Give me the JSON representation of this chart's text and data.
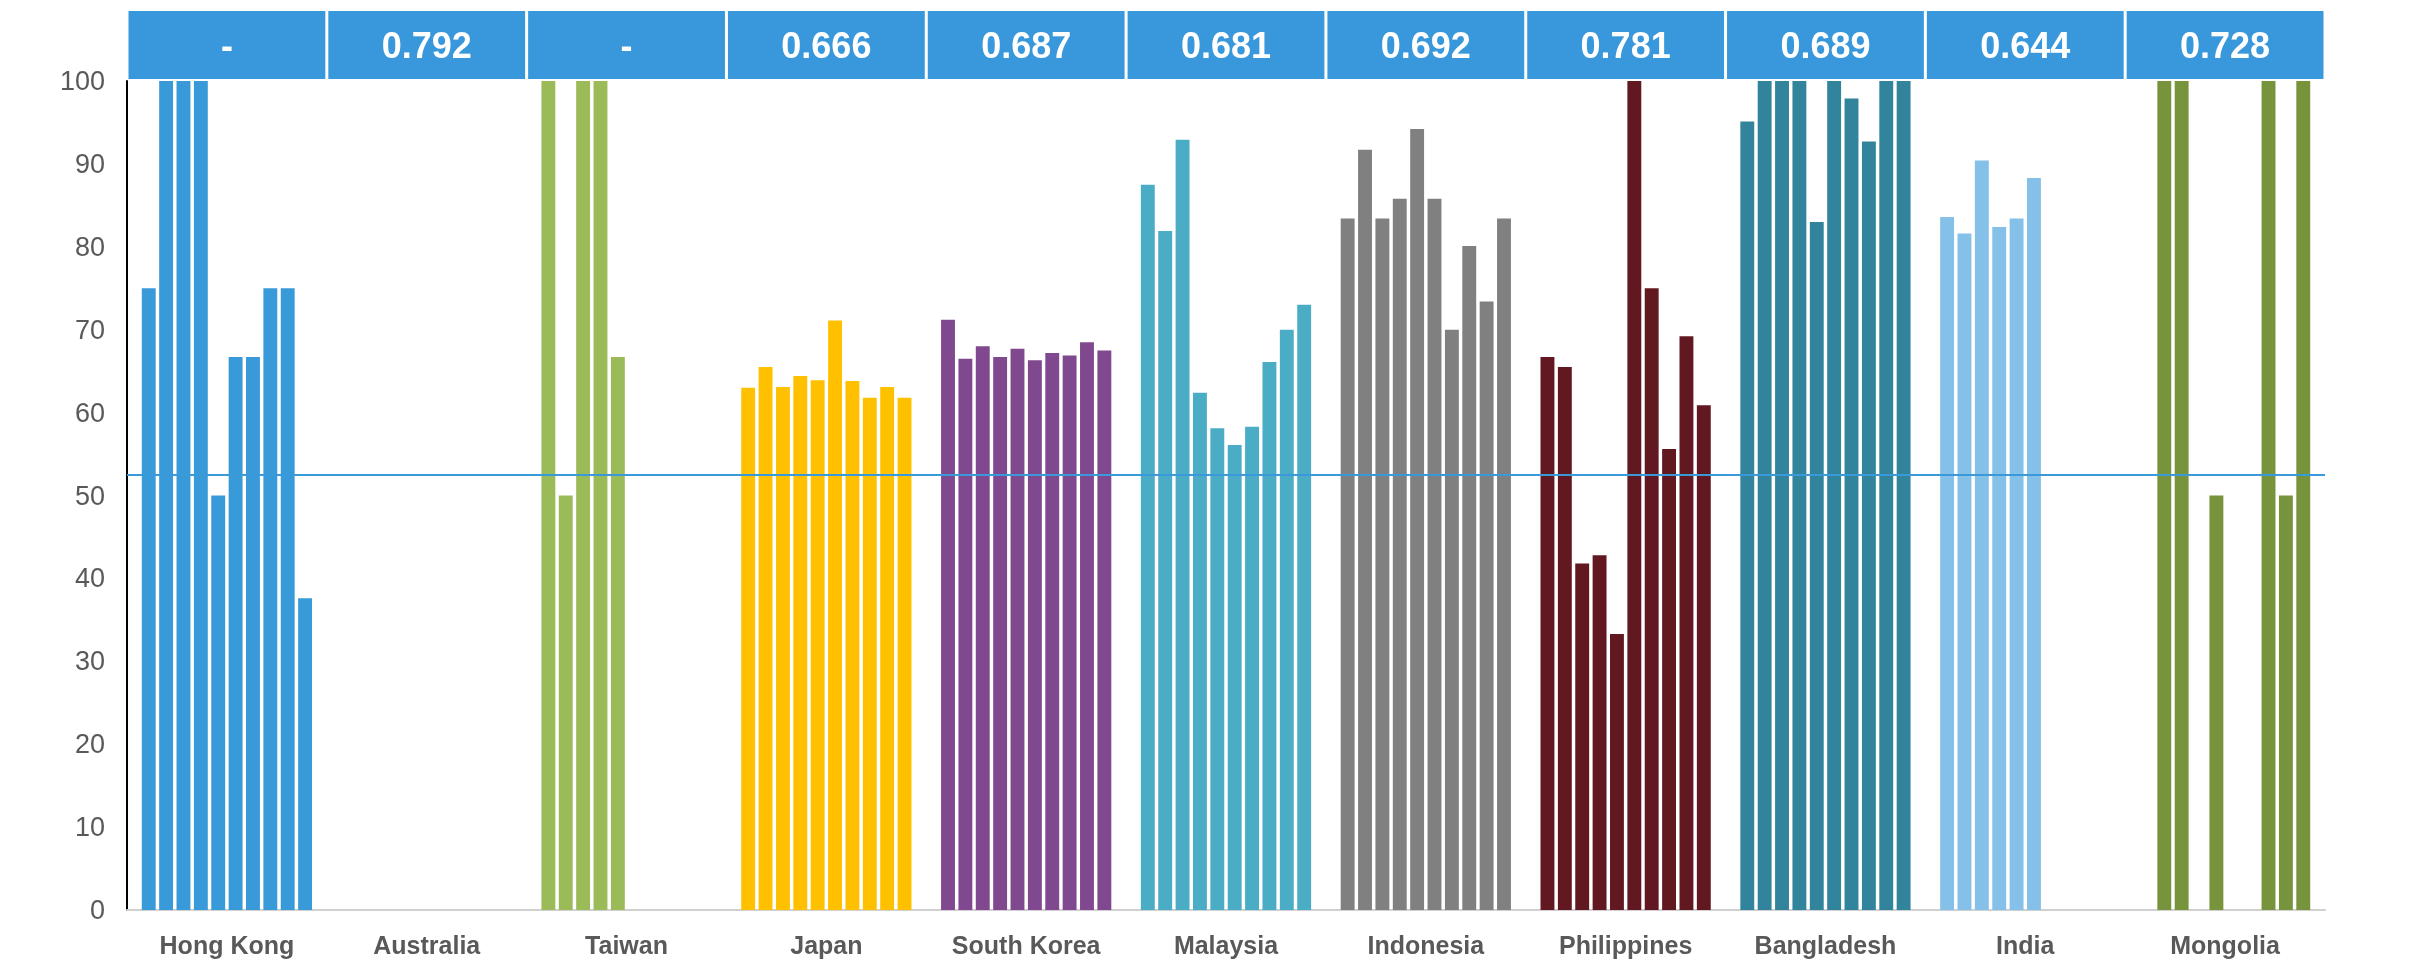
{
  "chart_data": {
    "type": "bar",
    "categories": [
      "Hong Kong",
      "Australia",
      "Taiwan",
      "Japan",
      "South Korea",
      "Malaysia",
      "Indonesia",
      "Philippines",
      "Bangladesh",
      "India",
      "Mongolia"
    ],
    "series": [
      {
        "colors": [
          "#389ad8",
          null,
          "#9bbb59",
          "#ffc000",
          "#80488f",
          "#4bacc6",
          "#808080",
          "#611821",
          "#31849b",
          "#84c0e8",
          "#77933c"
        ],
        "values": [
          75,
          null,
          100,
          63.0,
          71.2,
          87.5,
          83.4,
          66.7,
          95.1,
          83.6,
          null
        ]
      },
      {
        "colors": [
          "#389ad8",
          null,
          "#9bbb59",
          "#ffc000",
          "#80488f",
          "#4bacc6",
          "#808080",
          "#611821",
          "#31849b",
          "#84c0e8",
          "#77933c"
        ],
        "values": [
          100,
          null,
          50,
          65.5,
          66.5,
          81.9,
          91.7,
          65.5,
          100,
          81.6,
          100
        ]
      },
      {
        "colors": [
          "#389ad8",
          null,
          "#9bbb59",
          "#ffc000",
          "#80488f",
          "#4bacc6",
          "#808080",
          "#611821",
          "#31849b",
          "#84c0e8",
          "#77933c"
        ],
        "values": [
          100,
          null,
          100,
          63.1,
          68.0,
          92.9,
          83.4,
          41.8,
          100,
          90.4,
          100
        ]
      },
      {
        "colors": [
          "#389ad8",
          null,
          "#9bbb59",
          "#ffc000",
          "#80488f",
          "#4bacc6",
          "#808080",
          "#611821",
          "#31849b",
          "#84c0e8",
          "#77933c"
        ],
        "values": [
          100,
          null,
          100,
          64.4,
          66.7,
          62.4,
          85.8,
          42.8,
          100,
          82.4,
          null
        ]
      },
      {
        "colors": [
          "#389ad8",
          null,
          "#9bbb59",
          "#ffc000",
          "#80488f",
          "#4bacc6",
          "#808080",
          "#611821",
          "#31849b",
          "#84c0e8",
          "#77933c"
        ],
        "values": [
          50,
          null,
          66.7,
          63.9,
          67.7,
          58.1,
          94.2,
          33.3,
          83.0,
          83.4,
          50
        ]
      },
      {
        "colors": [
          "#389ad8",
          null,
          "#9bbb59",
          "#ffc000",
          "#80488f",
          "#4bacc6",
          "#808080",
          "#611821",
          "#31849b",
          "#84c0e8",
          "#77933c"
        ],
        "values": [
          66.7,
          null,
          null,
          71.1,
          66.3,
          56.1,
          85.8,
          100,
          100,
          88.3,
          null
        ]
      },
      {
        "colors": [
          "#389ad8",
          null,
          "#9bbb59",
          "#ffc000",
          "#80488f",
          "#4bacc6",
          "#808080",
          "#611821",
          "#31849b",
          "#84c0e8",
          "#77933c"
        ],
        "values": [
          66.7,
          null,
          null,
          63.8,
          67.2,
          58.3,
          70.0,
          75,
          97.9,
          null,
          null
        ]
      },
      {
        "colors": [
          "#389ad8",
          null,
          "#9bbb59",
          "#ffc000",
          "#80488f",
          "#4bacc6",
          "#808080",
          "#611821",
          "#31849b",
          "#84c0e8",
          "#77933c"
        ],
        "values": [
          75,
          null,
          null,
          61.8,
          66.9,
          66.1,
          80.1,
          55.6,
          92.7,
          null,
          100
        ]
      },
      {
        "colors": [
          "#389ad8",
          null,
          "#9bbb59",
          "#ffc000",
          "#80488f",
          "#4bacc6",
          "#808080",
          "#611821",
          "#31849b",
          "#84c0e8",
          "#77933c"
        ],
        "values": [
          75,
          null,
          null,
          63.1,
          68.5,
          70.0,
          73.4,
          69.2,
          100,
          null,
          50
        ]
      },
      {
        "colors": [
          "#389ad8",
          null,
          "#9bbb59",
          "#ffc000",
          "#80488f",
          "#4bacc6",
          "#808080",
          "#611821",
          "#31849b",
          "#84c0e8",
          "#77933c"
        ],
        "values": [
          37.6,
          null,
          null,
          61.8,
          67.5,
          73.0,
          83.4,
          60.9,
          100,
          null,
          100
        ]
      }
    ],
    "ylim": [
      0,
      100
    ],
    "yticks": [
      0,
      10,
      20,
      30,
      40,
      50,
      60,
      70,
      80,
      90,
      100
    ],
    "grid": false,
    "ref_lines": [
      {
        "axis": "y",
        "value": 52.5,
        "color": "#3a9ad9"
      }
    ],
    "annotations": [
      "-",
      "0.792",
      "-",
      "0.666",
      "0.687",
      "0.681",
      "0.692",
      "0.781",
      "0.689",
      "0.644",
      "0.728"
    ]
  }
}
